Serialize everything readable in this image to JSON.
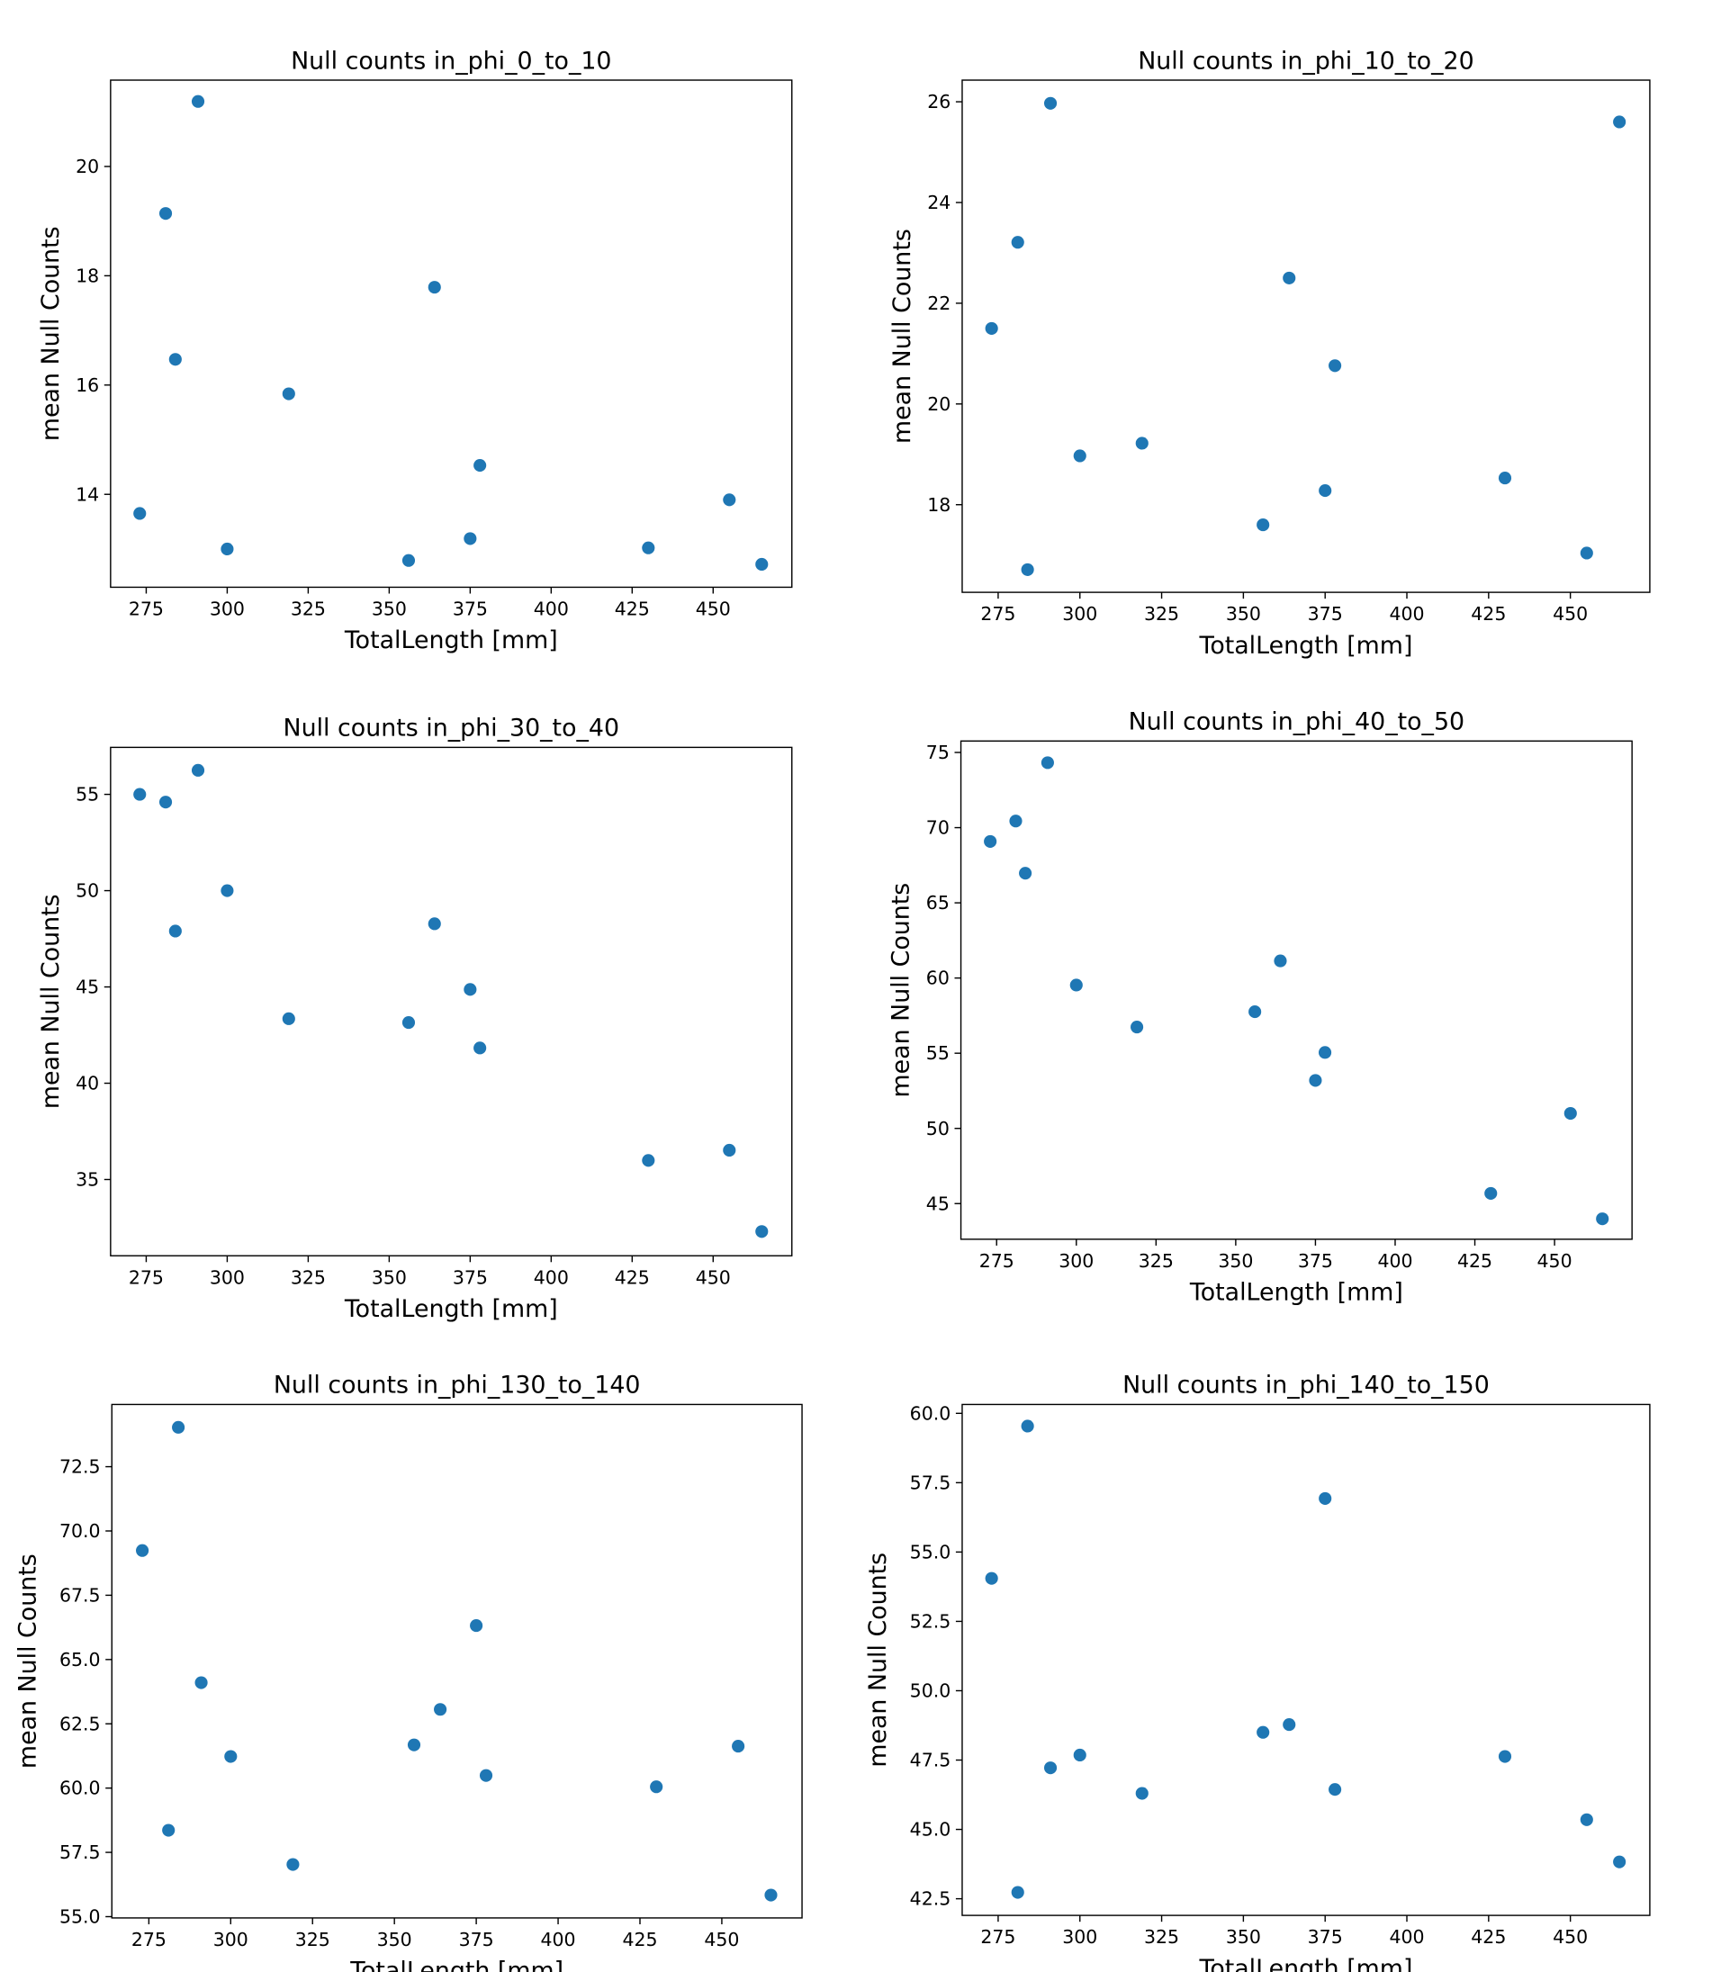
{
  "chart_data": [
    {
      "type": "scatter",
      "title": "Null counts in_phi_0_to_10",
      "xlabel": "TotalLength [mm]",
      "ylabel": "mean Null Counts",
      "color": "#1f77b4",
      "x": [
        273,
        281,
        284,
        291,
        300,
        319,
        356,
        364,
        375,
        378,
        430,
        455,
        465
      ],
      "values": [
        13.65,
        19.14,
        16.47,
        21.19,
        13.0,
        15.84,
        12.79,
        17.79,
        13.19,
        14.53,
        13.02,
        13.9,
        12.72
      ],
      "xlim": [
        264,
        474.3
      ],
      "ylim": [
        12.3,
        21.58
      ],
      "xticks": [
        275,
        300,
        325,
        350,
        375,
        400,
        425,
        450
      ],
      "yticks": [
        14,
        16,
        18,
        20
      ]
    },
    {
      "type": "scatter",
      "title": "Null counts in_phi_10_to_20",
      "xlabel": "TotalLength [mm]",
      "ylabel": "mean Null Counts",
      "color": "#1f77b4",
      "x": [
        273,
        281,
        284,
        291,
        300,
        319,
        356,
        364,
        375,
        378,
        430,
        455,
        465
      ],
      "values": [
        21.5,
        23.21,
        16.71,
        25.97,
        18.97,
        19.22,
        17.6,
        22.5,
        18.28,
        20.76,
        18.53,
        17.04,
        25.6
      ],
      "xlim": [
        264,
        474.3
      ],
      "ylim": [
        16.26,
        26.43
      ],
      "xticks": [
        275,
        300,
        325,
        350,
        375,
        400,
        425,
        450
      ],
      "yticks": [
        18,
        20,
        22,
        24,
        26
      ]
    },
    {
      "type": "scatter",
      "title": "Null counts in_phi_30_to_40",
      "xlabel": "TotalLength [mm]",
      "ylabel": "mean Null Counts",
      "color": "#1f77b4",
      "x": [
        273,
        281,
        284,
        291,
        300,
        319,
        356,
        364,
        375,
        378,
        430,
        455,
        465
      ],
      "values": [
        55.0,
        54.6,
        47.9,
        56.25,
        50.0,
        43.35,
        43.15,
        48.28,
        44.87,
        41.83,
        35.99,
        36.52,
        32.3
      ],
      "xlim": [
        264,
        474.3
      ],
      "ylim": [
        31.04,
        57.44
      ],
      "xticks": [
        275,
        300,
        325,
        350,
        375,
        400,
        425,
        450
      ],
      "yticks": [
        35,
        40,
        45,
        50,
        55
      ]
    },
    {
      "type": "scatter",
      "title": "Null counts in_phi_40_to_50",
      "xlabel": "TotalLength [mm]",
      "ylabel": "mean Null Counts",
      "color": "#1f77b4",
      "x": [
        273,
        281,
        284,
        291,
        300,
        319,
        356,
        364,
        375,
        378,
        430,
        455,
        465
      ],
      "values": [
        69.08,
        70.44,
        66.97,
        74.32,
        59.53,
        56.74,
        57.76,
        61.14,
        53.19,
        55.05,
        45.68,
        51.0,
        43.99
      ],
      "xlim": [
        263.8,
        474.3
      ],
      "ylim": [
        42.63,
        75.76
      ],
      "xticks": [
        275,
        300,
        325,
        350,
        375,
        400,
        425,
        450
      ],
      "yticks": [
        45,
        50,
        55,
        60,
        65,
        70,
        75
      ]
    },
    {
      "type": "scatter",
      "title": "Null counts in_phi_130_to_140",
      "xlabel": "TotalLength [mm]",
      "ylabel": "mean Null Counts",
      "color": "#1f77b4",
      "x": [
        273,
        281,
        284,
        291,
        300,
        319,
        356,
        364,
        375,
        378,
        430,
        455,
        465
      ],
      "values": [
        69.24,
        58.36,
        74.03,
        64.1,
        61.23,
        57.03,
        61.68,
        63.06,
        66.32,
        60.49,
        60.05,
        61.63,
        55.84
      ],
      "xlim": [
        263.7,
        474.5
      ],
      "ylim": [
        54.95,
        74.92
      ],
      "xticks": [
        275,
        300,
        325,
        350,
        375,
        400,
        425,
        450
      ],
      "yticks": [
        {
          "value": 55,
          "label": "55.0"
        },
        57.5,
        {
          "value": 60,
          "label": "60.0"
        },
        62.5,
        {
          "value": 65,
          "label": "65.0"
        },
        67.5,
        {
          "value": 70,
          "label": "70.0"
        },
        72.5
      ]
    },
    {
      "type": "scatter",
      "title": "Null counts in_phi_140_to_150",
      "xlabel": "TotalLength [mm]",
      "ylabel": "mean Null Counts",
      "color": "#1f77b4",
      "x": [
        273,
        281,
        284,
        291,
        300,
        319,
        356,
        364,
        375,
        378,
        430,
        455,
        465
      ],
      "values": [
        54.05,
        42.73,
        59.54,
        47.22,
        47.68,
        46.3,
        48.5,
        48.78,
        56.93,
        46.44,
        47.63,
        45.35,
        43.83
      ],
      "xlim": [
        264,
        474.3
      ],
      "ylim": [
        41.9,
        60.32
      ],
      "xticks": [
        275,
        300,
        325,
        350,
        375,
        400,
        425,
        450
      ],
      "yticks": [
        42.5,
        {
          "value": 45,
          "label": "45.0"
        },
        47.5,
        {
          "value": 50,
          "label": "50.0"
        },
        52.5,
        {
          "value": 55,
          "label": "55.0"
        },
        57.5,
        {
          "value": 60,
          "label": "60.0"
        }
      ]
    }
  ]
}
